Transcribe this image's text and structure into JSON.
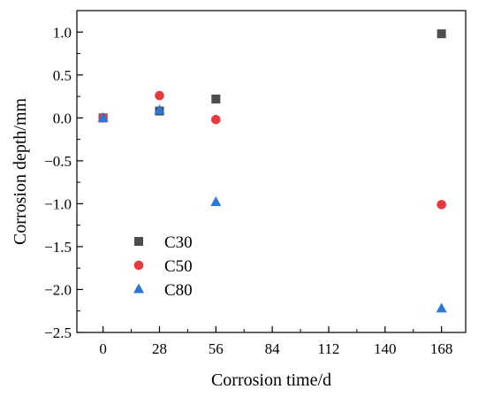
{
  "chart_data": {
    "type": "scatter",
    "xlabel": "Corrosion time/d",
    "ylabel": "Corrosion depth/mm",
    "xlim": [
      -13,
      180
    ],
    "ylim": [
      -2.5,
      1.25
    ],
    "xticks": [
      0,
      28,
      56,
      84,
      112,
      140,
      168
    ],
    "yticks": [
      -2.5,
      -2.0,
      -1.5,
      -1.0,
      -0.5,
      0.0,
      0.5,
      1.0
    ],
    "xtick_labels": [
      "0",
      "28",
      "56",
      "84",
      "112",
      "140",
      "168"
    ],
    "ytick_labels": [
      "−2.5",
      "−2.0",
      "−1.5",
      "−1.0",
      "−0.5",
      "0.0",
      "0.5",
      "1.0"
    ],
    "grid": false,
    "legend_position": "lower-left",
    "series": [
      {
        "name": "C30",
        "marker": "square",
        "color": "#4d4d4d",
        "x": [
          0,
          28,
          56,
          168
        ],
        "y": [
          0.0,
          0.08,
          0.22,
          0.98
        ]
      },
      {
        "name": "C50",
        "marker": "circle",
        "color": "#e8393f",
        "x": [
          0,
          28,
          56,
          168
        ],
        "y": [
          0.0,
          0.26,
          -0.02,
          -1.01
        ]
      },
      {
        "name": "C80",
        "marker": "triangle",
        "color": "#2a78d8",
        "x": [
          0,
          28,
          56,
          168
        ],
        "y": [
          0.0,
          0.09,
          -0.98,
          -2.22
        ]
      }
    ]
  }
}
